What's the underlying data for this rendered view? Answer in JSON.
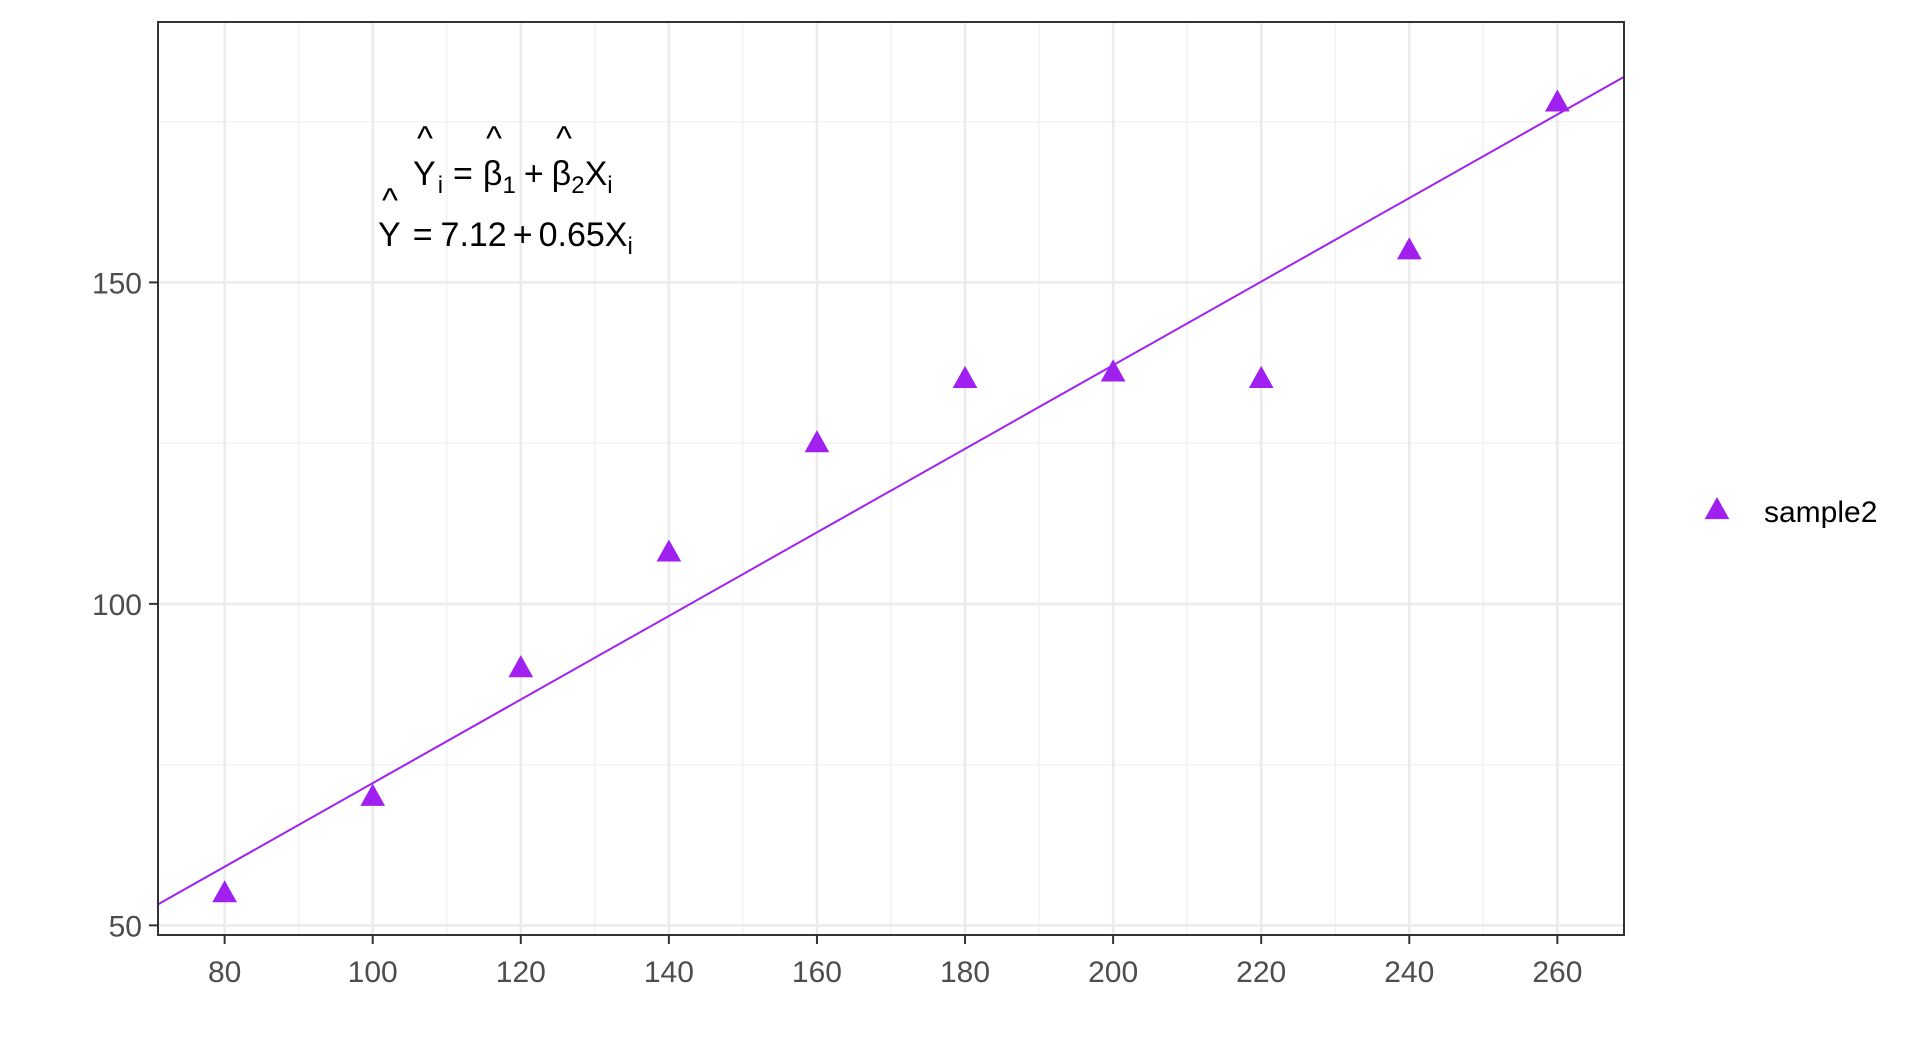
{
  "chart_data": {
    "type": "scatter",
    "xlim": [
      71,
      269
    ],
    "ylim": [
      48.5,
      190.5
    ],
    "x_ticks": [
      80,
      100,
      120,
      140,
      160,
      180,
      200,
      220,
      240,
      260
    ],
    "y_ticks": [
      50,
      100,
      150
    ],
    "x_tick_labels": [
      "80",
      "100",
      "120",
      "140",
      "160",
      "180",
      "200",
      "220",
      "240",
      "260"
    ],
    "y_tick_labels": [
      "50",
      "100",
      "150"
    ],
    "grid": true,
    "series": [
      {
        "name": "sample2",
        "marker": "triangle",
        "color": "#a020f0",
        "x": [
          80,
          100,
          120,
          140,
          160,
          180,
          200,
          220,
          240,
          260
        ],
        "y": [
          55,
          70,
          90,
          108,
          125,
          135,
          136,
          135,
          155,
          178
        ]
      }
    ],
    "fit_line": {
      "intercept": 7.12,
      "slope": 0.65,
      "color": "#a020f0"
    },
    "annotation": {
      "line1": "Ŷi = β̂1 + β̂2Xi",
      "line2": "Ŷ = 7.12 + 0.65Xi"
    },
    "legend": {
      "position": "right",
      "entries": [
        "sample2"
      ]
    }
  }
}
